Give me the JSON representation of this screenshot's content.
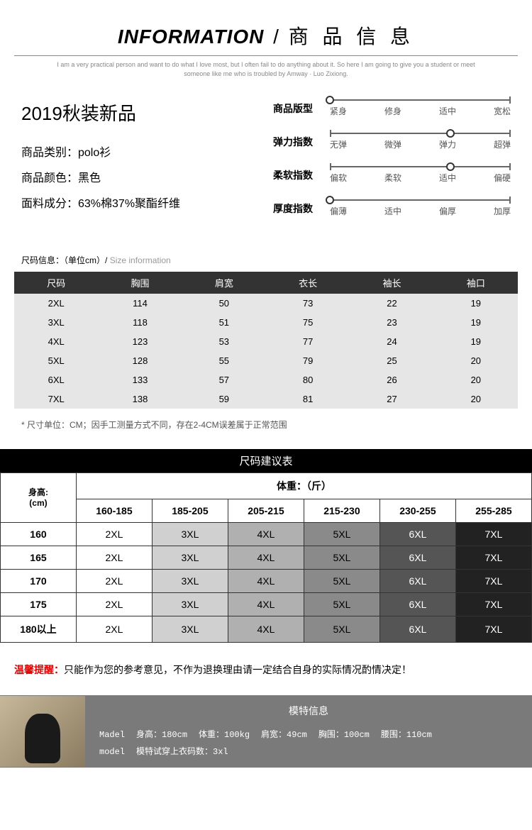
{
  "header": {
    "title_en": "INFORMATION",
    "title_slash": "/",
    "title_zh": "商 品 信 息",
    "subtitle": "I am a very practical person and want to do what I love most, but I often fail to do anything about it.\nSo here I am going to give you a student or meet someone like me who is troubled by Amway · Luo Zixiong."
  },
  "product": {
    "season_title": "2019秋装新品",
    "attrs": [
      {
        "label": "商品类别：",
        "value": "polo衫"
      },
      {
        "label": "商品颜色：",
        "value": "黑色"
      },
      {
        "label": "面料成分：",
        "value": "63%棉37%聚酯纤维"
      }
    ]
  },
  "specs": {
    "rows": [
      {
        "label": "商品版型",
        "options": [
          "紧身",
          "修身",
          "适中",
          "宽松"
        ],
        "dot_index": 0
      },
      {
        "label": "弹力指数",
        "options": [
          "无弹",
          "微弹",
          "弹力",
          "超弹"
        ],
        "dot_index": 2
      },
      {
        "label": "柔软指数",
        "options": [
          "偏软",
          "柔软",
          "适中",
          "偏硬"
        ],
        "dot_index": 2
      },
      {
        "label": "厚度指数",
        "options": [
          "偏薄",
          "适中",
          "偏厚",
          "加厚"
        ],
        "dot_index": 0
      }
    ],
    "line_color": "#666666"
  },
  "size_table": {
    "label": "尺码信息：",
    "label_unit": "（单位cm）/",
    "label_sub": " Size information",
    "header_bg": "#333333",
    "body_bg": "#e6e6e6",
    "columns": [
      "尺码",
      "胸围",
      "肩宽",
      "衣长",
      "袖长",
      "袖口"
    ],
    "rows": [
      [
        "2XL",
        "114",
        "50",
        "73",
        "22",
        "19"
      ],
      [
        "3XL",
        "118",
        "51",
        "75",
        "23",
        "19"
      ],
      [
        "4XL",
        "123",
        "53",
        "77",
        "24",
        "19"
      ],
      [
        "5XL",
        "128",
        "55",
        "79",
        "25",
        "20"
      ],
      [
        "6XL",
        "133",
        "57",
        "80",
        "26",
        "20"
      ],
      [
        "7XL",
        "138",
        "59",
        "81",
        "27",
        "20"
      ]
    ],
    "note": "* 尺寸单位：CM；因手工测量方式不同，存在2-4CM误差属于正常范围"
  },
  "suggest": {
    "title": "尺码建议表",
    "height_label": "身高:",
    "height_unit": "(cm)",
    "weight_label": "体重：（斤）",
    "weight_ranges": [
      "160-185",
      "185-205",
      "205-215",
      "215-230",
      "230-255",
      "255-285"
    ],
    "heights": [
      "160",
      "165",
      "170",
      "175",
      "180以上"
    ],
    "cells": [
      [
        "2XL",
        "3XL",
        "4XL",
        "5XL",
        "6XL",
        "7XL"
      ],
      [
        "2XL",
        "3XL",
        "4XL",
        "5XL",
        "6XL",
        "7XL"
      ],
      [
        "2XL",
        "3XL",
        "4XL",
        "5XL",
        "6XL",
        "7XL"
      ],
      [
        "2XL",
        "3XL",
        "4XL",
        "5XL",
        "6XL",
        "7XL"
      ],
      [
        "2XL",
        "3XL",
        "4XL",
        "5XL",
        "6XL",
        "7XL"
      ]
    ],
    "col_shades": [
      "#ffffff",
      "#d0d0d0",
      "#b0b0b0",
      "#8a8a8a",
      "#555555",
      "#222222"
    ]
  },
  "warning": {
    "label": "温馨提醒：",
    "text": "只能作为您的参考意见，不作为退换理由请一定结合自身的实际情况酌情决定！",
    "label_color": "#e60000"
  },
  "model": {
    "title": "模特信息",
    "prefix1": "Madel",
    "line1_items": [
      "身高：180cm",
      "体重：100kg",
      "肩宽：49cm",
      "胸围：100cm",
      "腰围：110cm"
    ],
    "prefix2": "model",
    "line2": "模特试穿上衣码数：3xl",
    "bg_color": "#7a7a7a"
  }
}
